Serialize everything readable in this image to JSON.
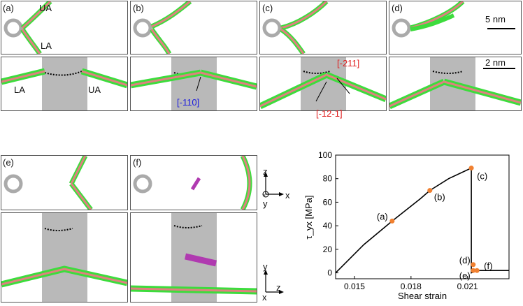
{
  "panels": [
    {
      "id": "a",
      "label": "(a)"
    },
    {
      "id": "b",
      "label": "(b)"
    },
    {
      "id": "c",
      "label": "(c)"
    },
    {
      "id": "d",
      "label": "(d)"
    },
    {
      "id": "e",
      "label": "(e)"
    },
    {
      "id": "f",
      "label": "(f)"
    }
  ],
  "annotations": {
    "ua": "UA",
    "la": "LA",
    "la_lower": "LA",
    "ua_lower": "UA",
    "dir_110": "[-110]",
    "dir_211": "[-211]",
    "dir_121": "[-12-1]",
    "scale_top": "5 nm",
    "scale_bottom": "2 nm"
  },
  "axes_top": {
    "z": "z",
    "x": "x",
    "y": "y"
  },
  "axes_bottom": {
    "y": "y",
    "z": "z",
    "x": "x"
  },
  "colors": {
    "dislocation_green": "#3ddc3d",
    "dislocation_red": "#e07070",
    "void_gray": "#b9b9b9",
    "marker": "#f08030",
    "magenta": "#b03ab0"
  },
  "chart_data": {
    "type": "line",
    "xlabel": "Shear strain",
    "ylabel": "τ_yx [MPa]",
    "xlim": [
      0.014,
      0.0232
    ],
    "ylim": [
      -5,
      100
    ],
    "xticks": [
      "0.015",
      "0.018",
      "0.021"
    ],
    "yticks": [
      "0",
      "20",
      "40",
      "60",
      "80",
      "100"
    ],
    "curve": {
      "x": [
        0.014,
        0.0155,
        0.017,
        0.0185,
        0.019,
        0.02,
        0.0212,
        0.0212,
        0.0215,
        0.0232
      ],
      "y": [
        0,
        24,
        44,
        63,
        70,
        80,
        89,
        0,
        2,
        2
      ]
    },
    "points": [
      {
        "label": "(a)",
        "x": 0.017,
        "y": 44
      },
      {
        "label": "(b)",
        "x": 0.019,
        "y": 70
      },
      {
        "label": "(c)",
        "x": 0.0212,
        "y": 89
      },
      {
        "label": "(d)",
        "x": 0.0213,
        "y": 7
      },
      {
        "label": "(e)",
        "x": 0.0213,
        "y": 2
      },
      {
        "label": "(f)",
        "x": 0.0215,
        "y": 2
      }
    ]
  }
}
